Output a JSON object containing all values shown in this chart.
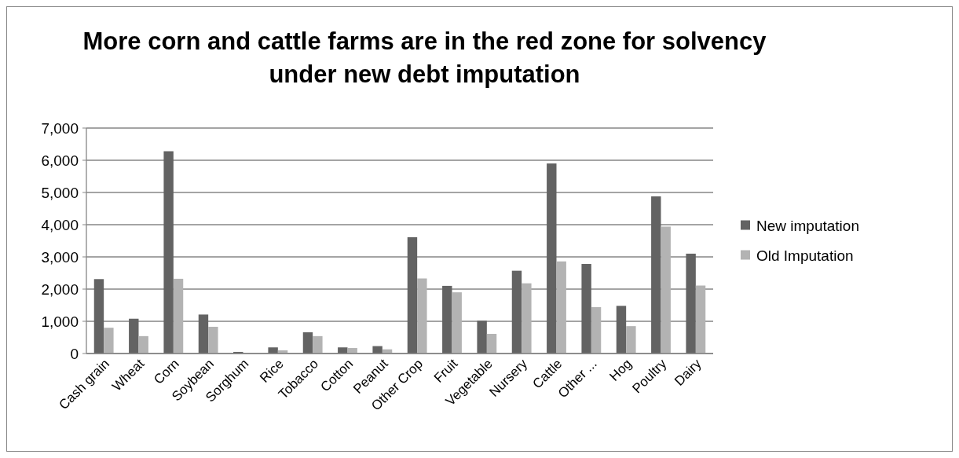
{
  "chart_data": {
    "type": "bar",
    "title": "More corn and cattle farms are in the red zone for solvency under new debt imputation",
    "categories": [
      "Cash grain",
      "Wheat",
      "Corn",
      "Soybean",
      "Sorghum",
      "Rice",
      "Tobacco",
      "Cotton",
      "Peanut",
      "Other Crop",
      "Fruit",
      "Vegetable",
      "Nursery",
      "Cattle",
      "Other ...",
      "Hog",
      "Poultry",
      "Dairy"
    ],
    "series": [
      {
        "name": "New imputation",
        "color": "#636363",
        "values": [
          2310,
          1080,
          6280,
          1210,
          50,
          190,
          660,
          190,
          230,
          3610,
          2100,
          1020,
          2570,
          5900,
          2780,
          1480,
          4880,
          3100
        ]
      },
      {
        "name": "Old Imputation",
        "color": "#b3b3b3",
        "values": [
          800,
          540,
          2320,
          830,
          0,
          100,
          540,
          170,
          130,
          2330,
          1900,
          610,
          2180,
          2860,
          1440,
          850,
          3940,
          2110
        ]
      }
    ],
    "ylim": [
      0,
      7000
    ],
    "yticks": [
      {
        "value": 0,
        "label": "0"
      },
      {
        "value": 1000,
        "label": "1,000"
      },
      {
        "value": 2000,
        "label": "2,000"
      },
      {
        "value": 3000,
        "label": "3,000"
      },
      {
        "value": 4000,
        "label": "4,000"
      },
      {
        "value": 5000,
        "label": "5,000"
      },
      {
        "value": 6000,
        "label": "6,000"
      },
      {
        "value": 7000,
        "label": "7,000"
      }
    ],
    "grid": "y",
    "legend": "right"
  }
}
